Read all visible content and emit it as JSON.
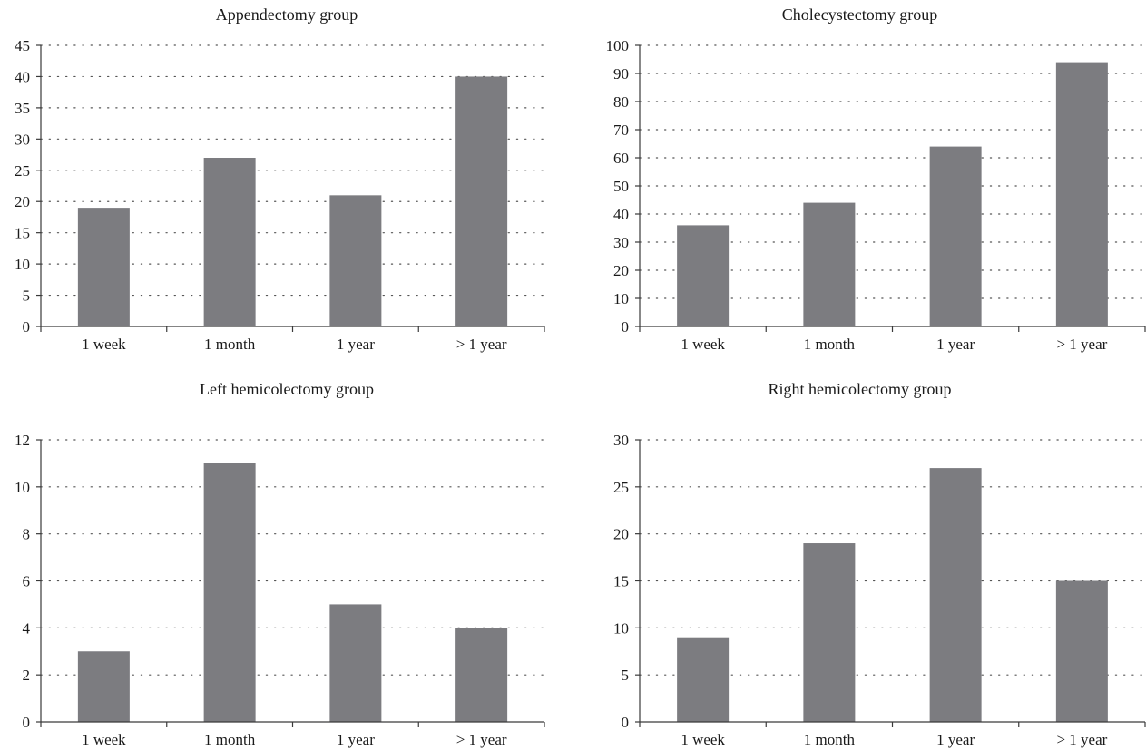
{
  "bar_color": "#7c7c80",
  "axis_color": "#3a3a3a",
  "grid_color": "#555555",
  "chart_data": [
    {
      "type": "bar",
      "title": "Appendectomy group",
      "categories": [
        "1 week",
        "1 month",
        "1 year",
        "> 1 year"
      ],
      "values": [
        19,
        27,
        21,
        40
      ],
      "xlabel": "",
      "ylabel": "",
      "ylim": [
        0,
        45
      ],
      "yticks": [
        0,
        5,
        10,
        15,
        20,
        25,
        30,
        35,
        40,
        45
      ],
      "grid": "horizontal-dotted"
    },
    {
      "type": "bar",
      "title": "Cholecystectomy group",
      "categories": [
        "1 week",
        "1 month",
        "1 year",
        "> 1 year"
      ],
      "values": [
        36,
        44,
        64,
        94
      ],
      "xlabel": "",
      "ylabel": "",
      "ylim": [
        0,
        100
      ],
      "yticks": [
        0,
        10,
        20,
        30,
        40,
        50,
        60,
        70,
        80,
        90,
        100
      ],
      "grid": "horizontal-dotted"
    },
    {
      "type": "bar",
      "title": "Left hemicolectomy group",
      "categories": [
        "1 week",
        "1 month",
        "1 year",
        "> 1 year"
      ],
      "values": [
        3,
        11,
        5,
        4
      ],
      "xlabel": "",
      "ylabel": "",
      "ylim": [
        0,
        12
      ],
      "yticks": [
        0,
        2,
        4,
        6,
        8,
        10,
        12
      ],
      "grid": "horizontal-dotted"
    },
    {
      "type": "bar",
      "title": "Right hemicolectomy group",
      "categories": [
        "1 week",
        "1 month",
        "1 year",
        "> 1 year"
      ],
      "values": [
        9,
        19,
        27,
        15
      ],
      "xlabel": "",
      "ylabel": "",
      "ylim": [
        0,
        30
      ],
      "yticks": [
        0,
        5,
        10,
        15,
        20,
        25,
        30
      ],
      "grid": "horizontal-dotted"
    }
  ]
}
